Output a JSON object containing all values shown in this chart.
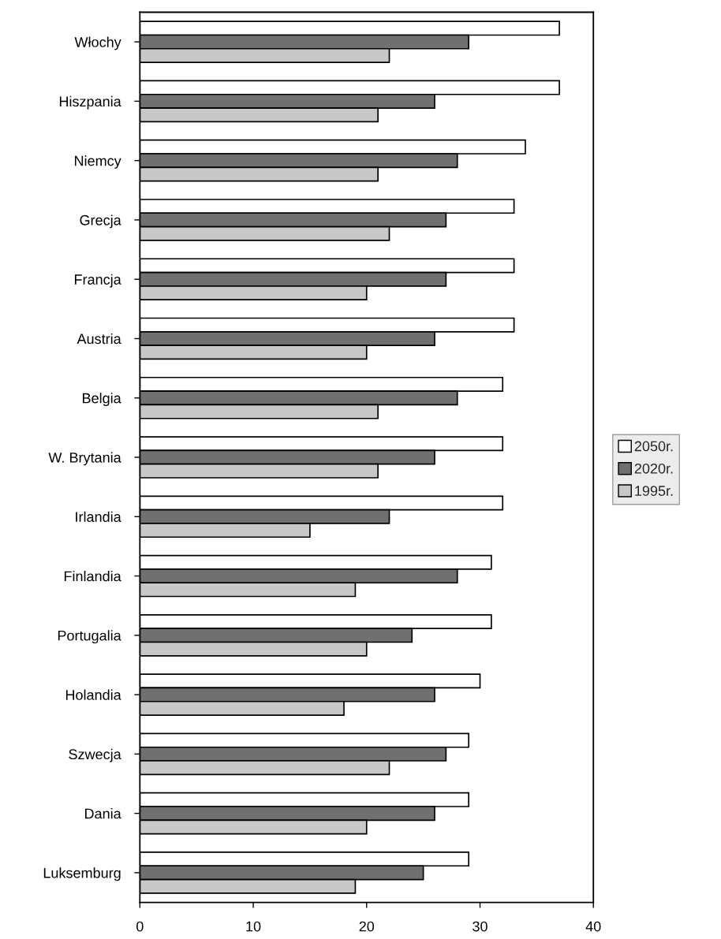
{
  "chart_data": {
    "type": "bar",
    "orientation": "horizontal",
    "categories": [
      "Włochy",
      "Hiszpania",
      "Niemcy",
      "Grecja",
      "Francja",
      "Austria",
      "Belgia",
      "W. Brytania",
      "Irlandia",
      "Finlandia",
      "Portugalia",
      "Holandia",
      "Szwecja",
      "Dania",
      "Luksemburg"
    ],
    "series": [
      {
        "name": "2050r.",
        "color": "#ffffff",
        "values": [
          37,
          37,
          34,
          33,
          33,
          33,
          32,
          32,
          32,
          31,
          31,
          30,
          29,
          29,
          29
        ]
      },
      {
        "name": "2020r.",
        "color": "#707070",
        "values": [
          29,
          26,
          28,
          27,
          27,
          26,
          28,
          26,
          22,
          28,
          24,
          26,
          27,
          26,
          25
        ]
      },
      {
        "name": "1995r.",
        "color": "#c8c8c8",
        "values": [
          22,
          21,
          21,
          22,
          20,
          20,
          21,
          21,
          15,
          19,
          20,
          18,
          22,
          20,
          19
        ]
      }
    ],
    "xlim": [
      0,
      40
    ],
    "xticks": [
      0,
      10,
      20,
      30,
      40
    ],
    "grid": false,
    "legend": "right"
  }
}
